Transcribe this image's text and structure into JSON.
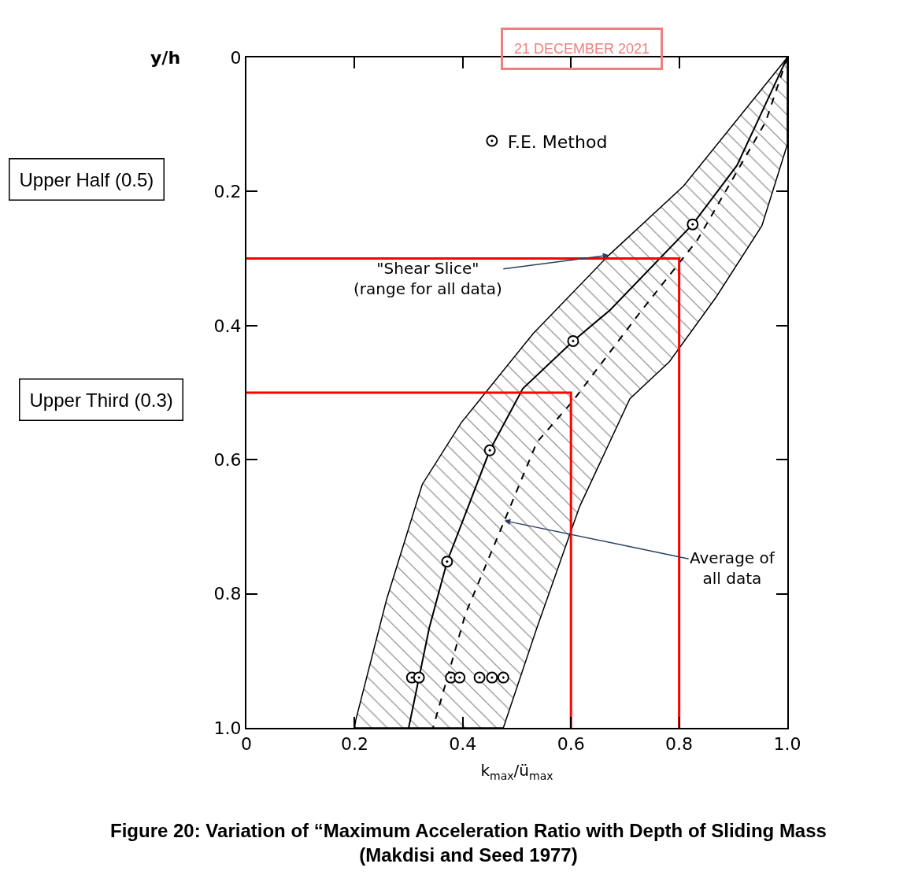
{
  "chart_data": {
    "type": "line",
    "title": "Figure 20: Variation of “Maximum Acceleration Ratio with Depth of Sliding Mass\n(Makdisi and Seed 1977)",
    "xlabel": "k$_{max}$/ü$_{max}$",
    "ylabel": "y/h",
    "xlim": [
      0,
      1.0
    ],
    "xticks": [
      0,
      0.2,
      0.4,
      0.6,
      0.8,
      {
        "value": 1.0,
        "label": "1.0"
      }
    ],
    "ylim": [
      1.0,
      0
    ],
    "yticks": [
      0,
      0.2,
      0.4,
      0.6,
      0.8,
      {
        "value": 1.0,
        "label": "1.0"
      }
    ],
    "legend": "top",
    "series": [
      {
        "type": "area",
        "color": "#000000",
        "x": [
          1.0,
          0.808,
          0.67,
          0.53,
          0.397,
          0.325,
          0.259,
          0.202,
          0.2,
          0.475,
          0.537,
          0.616,
          0.709,
          0.782,
          0.868,
          0.953,
          1.0,
          1.0
        ],
        "values": [
          0,
          0.192,
          0.295,
          0.412,
          0.545,
          0.637,
          0.809,
          0.989,
          1.0,
          1.0,
          0.851,
          0.67,
          0.509,
          0.454,
          0.358,
          0.251,
          0.13,
          0
        ]
      },
      {
        "color": "#000000",
        "line_style": "solid",
        "x": [
          1.0,
          0.907,
          0.825,
          0.672,
          0.604,
          0.511,
          0.45,
          0.371,
          0.338,
          0.3
        ],
        "values": [
          0,
          0.161,
          0.249,
          0.377,
          0.423,
          0.494,
          0.586,
          0.752,
          0.851,
          1.0
        ]
      },
      {
        "color": "#000000",
        "line_style": "dashed",
        "x": [
          1.0,
          0.96,
          0.834,
          0.729,
          0.603,
          0.537,
          0.477,
          0.405,
          0.345
        ],
        "values": [
          0,
          0.096,
          0.272,
          0.379,
          0.513,
          0.574,
          0.691,
          0.83,
          1.0
        ]
      },
      {
        "type": "scatter",
        "name": "F.E. Method",
        "color": "#000000",
        "marker": "circle",
        "x": [
          0.825,
          0.604,
          0.45,
          0.371,
          0.306,
          0.319,
          0.378,
          0.394,
          0.431,
          0.454,
          0.475
        ],
        "values": [
          0.249,
          0.423,
          0.586,
          0.752,
          0.925,
          0.925,
          0.925,
          0.925,
          0.925,
          0.925,
          0.925
        ]
      },
      {
        "color": "#ff0000",
        "line_style": "solid",
        "x": [
          0,
          0.8,
          0.8
        ],
        "values": [
          0.3,
          0.3,
          1.0
        ]
      },
      {
        "color": "#ff0000",
        "line_style": "solid",
        "x": [
          0,
          0.6,
          0.6
        ],
        "values": [
          0.5,
          0.5,
          1.0
        ]
      }
    ],
    "annotations": [
      {
        "text": "\"Shear Slice\"\n(range for all data)",
        "x": 0.67,
        "y": 0.295
      },
      {
        "text": "Average of\nall data",
        "x": 0.477,
        "y": 0.691
      },
      "Upper Half (0.5)",
      "Upper Third (0.3)",
      "21 DECEMBER 2021"
    ]
  }
}
